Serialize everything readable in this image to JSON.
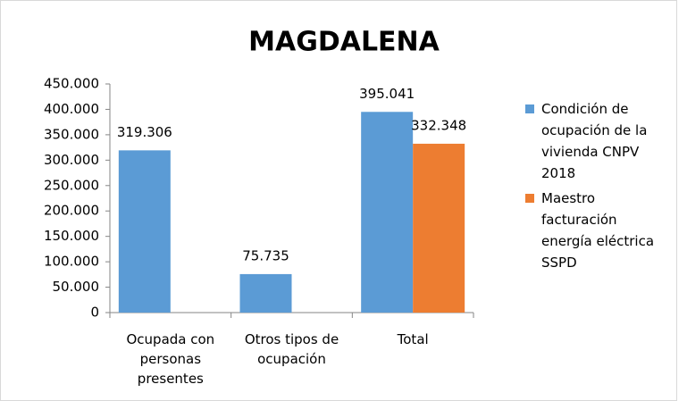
{
  "chart_data": {
    "type": "bar",
    "title": "MAGDALENA",
    "categories": [
      "Ocupada con personas presentes",
      "Otros tipos de ocupación",
      "Total"
    ],
    "series": [
      {
        "name": "Condición de ocupación de la vivienda CNPV 2018",
        "color": "#5b9bd5",
        "values": [
          319306,
          75735,
          395041
        ],
        "value_labels": [
          "319.306",
          "75.735",
          "395.041"
        ]
      },
      {
        "name": "Maestro facturación energía eléctrica SSPD",
        "color": "#ed7d31",
        "values": [
          null,
          null,
          332348
        ],
        "value_labels": [
          null,
          null,
          "332.348"
        ]
      }
    ],
    "ylim": [
      0,
      450000
    ],
    "yticks": [
      0,
      {
        "value": 50000,
        "label": "50.000"
      },
      {
        "value": 100000,
        "label": "100.000"
      },
      {
        "value": 150000,
        "label": "150.000"
      },
      {
        "value": 200000,
        "label": "200.000"
      },
      {
        "value": 250000,
        "label": "250.000"
      },
      {
        "value": 300000,
        "label": "300.000"
      },
      {
        "value": 350000,
        "label": "350.000"
      },
      {
        "value": 400000,
        "label": "400.000"
      },
      {
        "value": 450000,
        "label": "450.000"
      }
    ],
    "legend": "right",
    "grid": false
  }
}
